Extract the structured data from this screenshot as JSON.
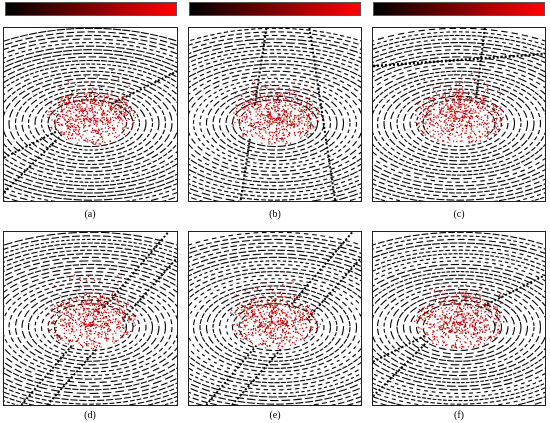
{
  "colorbar": {
    "start_color": "#000000",
    "end_color": "#ff0000"
  },
  "point_colors": {
    "ground": "#000000",
    "points": "#c00000",
    "highlight": "#e8e8ff"
  },
  "panels": [
    {
      "id": "a",
      "label": "(a)",
      "road": "diagonal-left-down"
    },
    {
      "id": "b",
      "label": "(b)",
      "road": "vertical-curve"
    },
    {
      "id": "c",
      "label": "(c)",
      "road": "horizontal-top"
    },
    {
      "id": "d",
      "label": "(d)",
      "road": "diagonal-right-up"
    },
    {
      "id": "e",
      "label": "(e)",
      "road": "diagonal-right-up"
    },
    {
      "id": "f",
      "label": "(f)",
      "road": "diagonal-left-down"
    }
  ]
}
